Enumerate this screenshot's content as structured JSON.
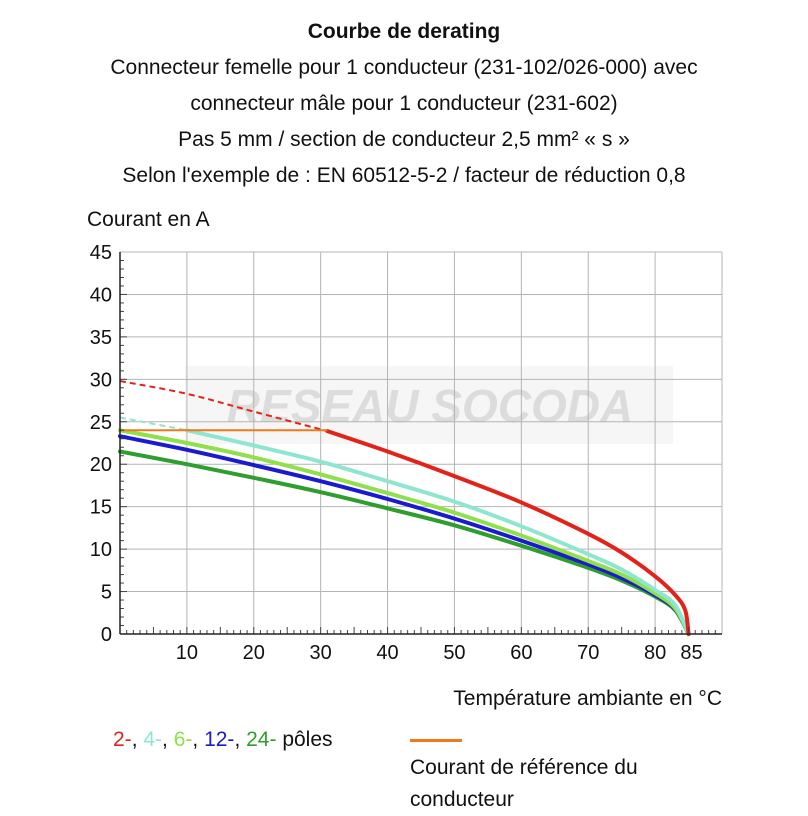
{
  "colors": {
    "red": "#e2231a",
    "cyan": "#8ee6cf",
    "lightgreen": "#8fe04a",
    "blue": "#1a1ad0",
    "green": "#2e9e2e",
    "orange": "#f07a1a",
    "grid": "#b4b4b4"
  },
  "chart_data": {
    "type": "line",
    "title": "Courbe de derating",
    "subtitle_lines": [
      "Connecteur femelle pour 1 conducteur (231-102/026-000) avec",
      "connecteur mâle pour 1 conducteur (231-602)",
      "Pas 5 mm / section de conducteur 2,5 mm² « s »",
      "Selon l'exemple de : EN 60512-5-2 / facteur de réduction 0,8"
    ],
    "ylabel": "Courant en A",
    "xlabel": "Température ambiante en °C",
    "xlim": [
      0,
      90
    ],
    "ylim": [
      0,
      45
    ],
    "x_ticks": [
      10,
      20,
      30,
      40,
      50,
      60,
      70,
      80,
      85
    ],
    "y_ticks": [
      0,
      5,
      10,
      15,
      20,
      25,
      30,
      35,
      40,
      45
    ],
    "grid": true,
    "series": [
      {
        "name": "2-",
        "color_key": "red",
        "dashed_part": [
          [
            0,
            29.8
          ],
          [
            10,
            28.3
          ],
          [
            20,
            26.2
          ],
          [
            31,
            23.9
          ]
        ],
        "solid_part": [
          [
            31,
            23.9
          ],
          [
            40,
            21.5
          ],
          [
            50,
            18.6
          ],
          [
            60,
            15.5
          ],
          [
            70,
            11.8
          ],
          [
            75,
            9.6
          ],
          [
            80,
            6.8
          ],
          [
            83,
            4.6
          ],
          [
            84.5,
            2.8
          ],
          [
            85,
            0
          ]
        ]
      },
      {
        "name": "4-",
        "color_key": "cyan",
        "dashed_part": [
          [
            0,
            25.5
          ],
          [
            10,
            24.0
          ]
        ],
        "solid_part": [
          [
            10,
            24.0
          ],
          [
            20,
            22.2
          ],
          [
            30,
            20.3
          ],
          [
            40,
            18.0
          ],
          [
            50,
            15.6
          ],
          [
            60,
            12.7
          ],
          [
            70,
            9.4
          ],
          [
            75,
            7.6
          ],
          [
            80,
            5.2
          ],
          [
            83,
            3.4
          ],
          [
            85,
            0
          ]
        ]
      },
      {
        "name": "6-",
        "color_key": "lightgreen",
        "dashed_part": [],
        "solid_part": [
          [
            0,
            24.0
          ],
          [
            10,
            22.5
          ],
          [
            20,
            20.8
          ],
          [
            30,
            18.8
          ],
          [
            40,
            16.6
          ],
          [
            50,
            14.3
          ],
          [
            60,
            11.6
          ],
          [
            70,
            8.6
          ],
          [
            75,
            7.0
          ],
          [
            80,
            4.8
          ],
          [
            83,
            3.0
          ],
          [
            85,
            0
          ]
        ]
      },
      {
        "name": "12-",
        "color_key": "blue",
        "dashed_part": [],
        "solid_part": [
          [
            0,
            23.3
          ],
          [
            10,
            21.7
          ],
          [
            20,
            19.9
          ],
          [
            30,
            18.0
          ],
          [
            40,
            15.9
          ],
          [
            50,
            13.6
          ],
          [
            60,
            11.0
          ],
          [
            70,
            8.2
          ],
          [
            75,
            6.6
          ],
          [
            80,
            4.6
          ],
          [
            83,
            2.9
          ],
          [
            85,
            0
          ]
        ]
      },
      {
        "name": "24-",
        "color_key": "green",
        "dashed_part": [],
        "solid_part": [
          [
            0,
            21.5
          ],
          [
            10,
            20.0
          ],
          [
            20,
            18.4
          ],
          [
            30,
            16.7
          ],
          [
            40,
            14.8
          ],
          [
            50,
            12.8
          ],
          [
            60,
            10.4
          ],
          [
            70,
            7.8
          ],
          [
            75,
            6.3
          ],
          [
            80,
            4.4
          ],
          [
            83,
            2.8
          ],
          [
            85,
            0
          ]
        ]
      }
    ],
    "reference_line": {
      "name": "Courant de référence du conducteur",
      "color_key": "orange",
      "points": [
        [
          0,
          24.0
        ],
        [
          31,
          24.0
        ]
      ]
    }
  },
  "legend": {
    "poles": [
      {
        "label": "2-",
        "color_key": "red"
      },
      {
        "label": "4-",
        "color_key": "cyan"
      },
      {
        "label": "6-",
        "color_key": "lightgreen"
      },
      {
        "label": "12-",
        "color_key": "blue"
      },
      {
        "label": "24-",
        "color_key": "green"
      }
    ],
    "poles_suffix": "pôles",
    "reference": "Courant de référence du conducteur"
  },
  "watermark": "RESEAU SOCODA"
}
